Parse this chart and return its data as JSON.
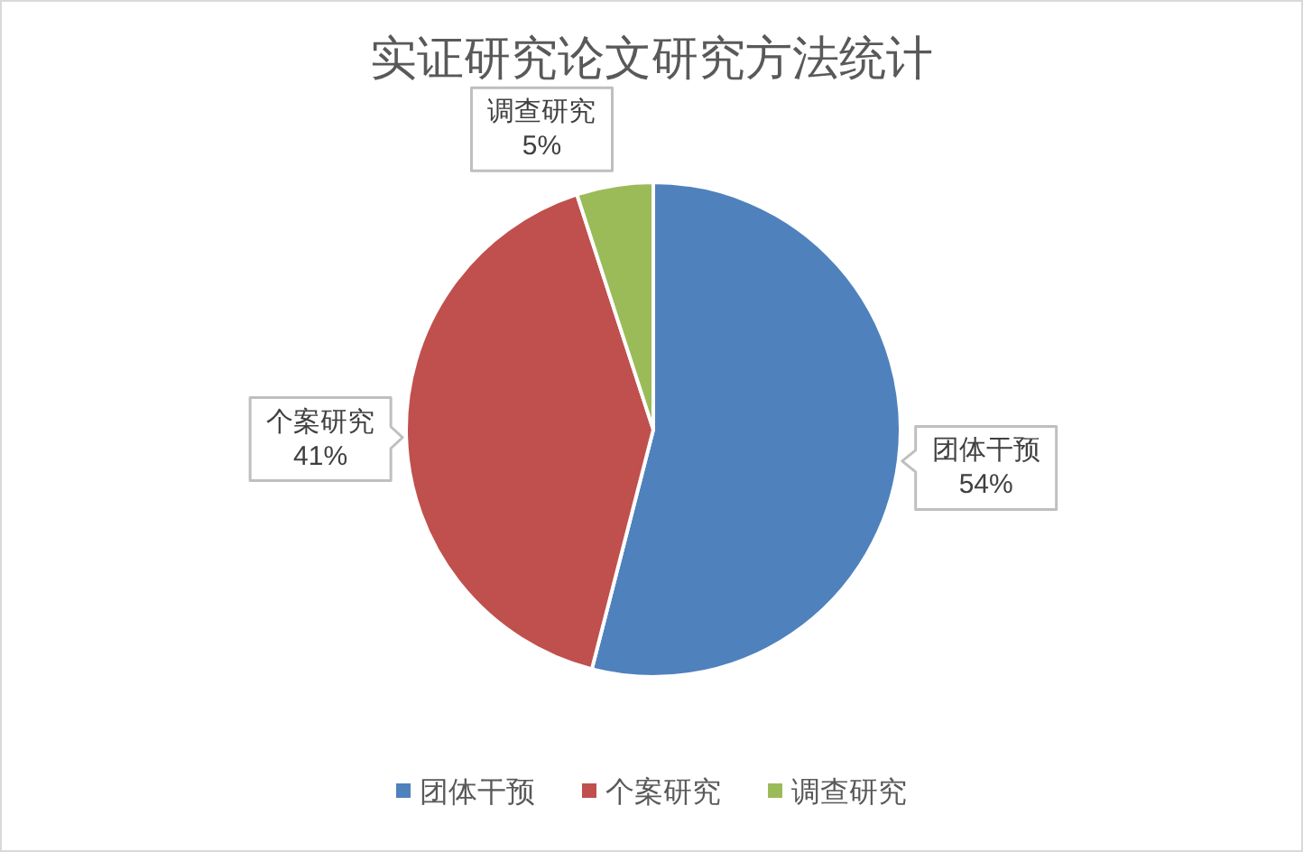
{
  "chart_data": {
    "type": "pie",
    "title": "实证研究论文研究方法统计",
    "categories": [
      "团体干预",
      "个案研究",
      "调查研究"
    ],
    "values": [
      54,
      41,
      5
    ],
    "colors": [
      "#4f81bd",
      "#c0504d",
      "#9bbb59"
    ],
    "value_labels": [
      "54%",
      "41%",
      "5%"
    ],
    "legend": "bottom"
  }
}
